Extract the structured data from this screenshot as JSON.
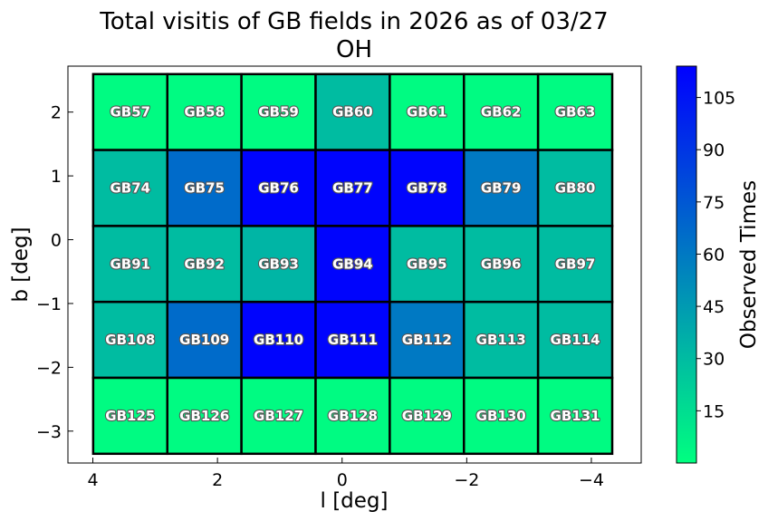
{
  "chart_data": {
    "type": "heatmap",
    "title_line1": "Total visitis of GB fields in 2026 as of 03/27",
    "title_line2": "OH",
    "xlabel": "l [deg]",
    "ylabel": "b [deg]",
    "colorbar_label": "Observed Times",
    "x_ticks": [
      4,
      2,
      0,
      -2,
      -4
    ],
    "x_tick_labels": [
      "4",
      "2",
      "0",
      "−2",
      "−4"
    ],
    "y_ticks": [
      2,
      1,
      0,
      -1,
      -2,
      -3
    ],
    "y_tick_labels": [
      "2",
      "1",
      "0",
      "−1",
      "−2",
      "−3"
    ],
    "xlim": [
      4.4,
      -4.8
    ],
    "ylim": [
      -3.5,
      2.72
    ],
    "colorbar_ticks": [
      15,
      30,
      45,
      60,
      75,
      90,
      105
    ],
    "colorbar_range": [
      0,
      114
    ],
    "colormap": [
      "#00ff80",
      "#0000ff"
    ],
    "cell_size_deg": [
      1.19,
      1.19
    ],
    "column_centers_l": [
      3.4,
      2.21,
      1.02,
      -0.17,
      -1.36,
      -2.55,
      -3.74
    ],
    "row_centers_b": [
      2.0,
      0.81,
      -0.38,
      -1.57,
      -2.76
    ],
    "rows": [
      [
        {
          "label": "GB57",
          "value": 2
        },
        {
          "label": "GB58",
          "value": 2
        },
        {
          "label": "GB59",
          "value": 2
        },
        {
          "label": "GB60",
          "value": 30
        },
        {
          "label": "GB61",
          "value": 2
        },
        {
          "label": "GB62",
          "value": 2
        },
        {
          "label": "GB63",
          "value": 2
        }
      ],
      [
        {
          "label": "GB74",
          "value": 30
        },
        {
          "label": "GB75",
          "value": 66
        },
        {
          "label": "GB76",
          "value": 112
        },
        {
          "label": "GB77",
          "value": 112
        },
        {
          "label": "GB78",
          "value": 112
        },
        {
          "label": "GB79",
          "value": 60
        },
        {
          "label": "GB80",
          "value": 30
        }
      ],
      [
        {
          "label": "GB91",
          "value": 30
        },
        {
          "label": "GB92",
          "value": 30
        },
        {
          "label": "GB93",
          "value": 33
        },
        {
          "label": "GB94",
          "value": 112
        },
        {
          "label": "GB95",
          "value": 30
        },
        {
          "label": "GB96",
          "value": 30
        },
        {
          "label": "GB97",
          "value": 30
        }
      ],
      [
        {
          "label": "GB108",
          "value": 30
        },
        {
          "label": "GB109",
          "value": 66
        },
        {
          "label": "GB110",
          "value": 112
        },
        {
          "label": "GB111",
          "value": 112
        },
        {
          "label": "GB112",
          "value": 60
        },
        {
          "label": "GB113",
          "value": 30
        },
        {
          "label": "GB114",
          "value": 30
        }
      ],
      [
        {
          "label": "GB125",
          "value": 2
        },
        {
          "label": "GB126",
          "value": 2
        },
        {
          "label": "GB127",
          "value": 2
        },
        {
          "label": "GB128",
          "value": 2
        },
        {
          "label": "GB129",
          "value": 2
        },
        {
          "label": "GB130",
          "value": 2
        },
        {
          "label": "GB131",
          "value": 2
        }
      ]
    ]
  }
}
